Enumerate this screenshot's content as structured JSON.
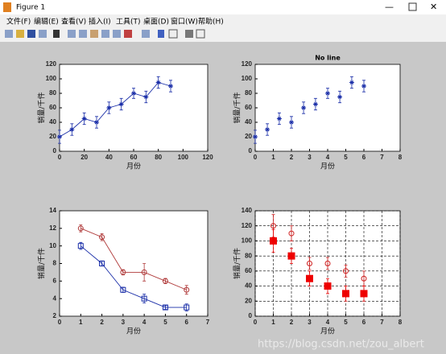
{
  "window": {
    "title": "Figure 1",
    "menu": [
      "文件(F)",
      "编辑(E)",
      "查看(V)",
      "插入(I)",
      "工具(T)",
      "桌面(D)",
      "窗口(W)",
      "帮助(H)"
    ],
    "watermark": "https://blog.csdn.net/zou_albert"
  },
  "chart_data": [
    {
      "type": "errorbar",
      "xlabel": "月份",
      "ylabel": "销量/千件",
      "xlim": [
        0,
        120
      ],
      "ylim": [
        0,
        120
      ],
      "xticks": [
        0,
        20,
        40,
        60,
        80,
        100,
        120
      ],
      "yticks": [
        0,
        20,
        40,
        60,
        80,
        100,
        120
      ],
      "grid": false,
      "x": [
        0,
        10,
        20,
        30,
        40,
        50,
        60,
        70,
        80,
        90
      ],
      "series": [
        {
          "color": "#1a2ea8",
          "marker": "*",
          "line": true,
          "values": [
            20,
            30,
            45,
            40,
            60,
            65,
            80,
            75,
            95,
            90
          ],
          "errors": [
            9,
            8,
            8,
            8,
            8,
            8,
            7,
            8,
            8,
            8
          ]
        }
      ]
    },
    {
      "type": "errorbar",
      "title": "No line",
      "xlabel": "月份",
      "ylabel": "销量/千件",
      "xlim": [
        0,
        8
      ],
      "ylim": [
        0,
        120
      ],
      "xticks": [
        0,
        1,
        2,
        3,
        4,
        5,
        6,
        7,
        8
      ],
      "yticks": [
        0,
        20,
        40,
        60,
        80,
        100,
        120
      ],
      "grid": false,
      "x": [
        0,
        0.67,
        1.33,
        2,
        2.67,
        3.33,
        4,
        4.67,
        5.33,
        6
      ],
      "series": [
        {
          "color": "#1a2ea8",
          "marker": "*",
          "line": false,
          "values": [
            20,
            30,
            45,
            40,
            60,
            65,
            80,
            75,
            95,
            90
          ],
          "errors": [
            9,
            8,
            8,
            8,
            8,
            8,
            7,
            8,
            8,
            8
          ]
        }
      ]
    },
    {
      "type": "errorbar",
      "xlabel": "月份",
      "ylabel": "销量/千件",
      "xlim": [
        0,
        7
      ],
      "ylim": [
        2,
        14
      ],
      "xticks": [
        0,
        1,
        2,
        3,
        4,
        5,
        6,
        7
      ],
      "yticks": [
        2,
        4,
        6,
        8,
        10,
        12,
        14
      ],
      "grid": false,
      "x": [
        1,
        2,
        3,
        4,
        5,
        6
      ],
      "series": [
        {
          "color": "#b03a3a",
          "marker": "o",
          "line": true,
          "values": [
            12,
            11,
            7,
            7,
            6,
            5
          ],
          "errors": [
            0.4,
            0.4,
            0.3,
            1,
            0.3,
            0.5
          ]
        },
        {
          "color": "#1a2ea8",
          "marker": "s",
          "line": true,
          "values": [
            10,
            8,
            5,
            4,
            3,
            3
          ],
          "errors": [
            0.4,
            0.3,
            0.3,
            0.5,
            0.2,
            0.4
          ]
        }
      ]
    },
    {
      "type": "errorbar",
      "xlabel": "月份",
      "ylabel": "销量/千件",
      "xlim": [
        0,
        8
      ],
      "ylim": [
        0,
        140
      ],
      "xticks": [
        0,
        1,
        2,
        3,
        4,
        5,
        6,
        7,
        8
      ],
      "yticks": [
        0,
        20,
        40,
        60,
        80,
        100,
        120,
        140
      ],
      "grid": true,
      "x": [
        1,
        2,
        3,
        4,
        5,
        6
      ],
      "series": [
        {
          "color": "#d02020",
          "marker": "o",
          "line": false,
          "values": [
            120,
            110,
            70,
            70,
            60,
            50
          ],
          "errors": [
            15,
            10,
            8,
            8,
            8,
            10
          ]
        },
        {
          "color": "#ee0000",
          "marker": "S",
          "line": false,
          "values": [
            100,
            80,
            50,
            40,
            30,
            30
          ],
          "errors": [
            15,
            10,
            10,
            10,
            10,
            10
          ]
        }
      ]
    }
  ]
}
